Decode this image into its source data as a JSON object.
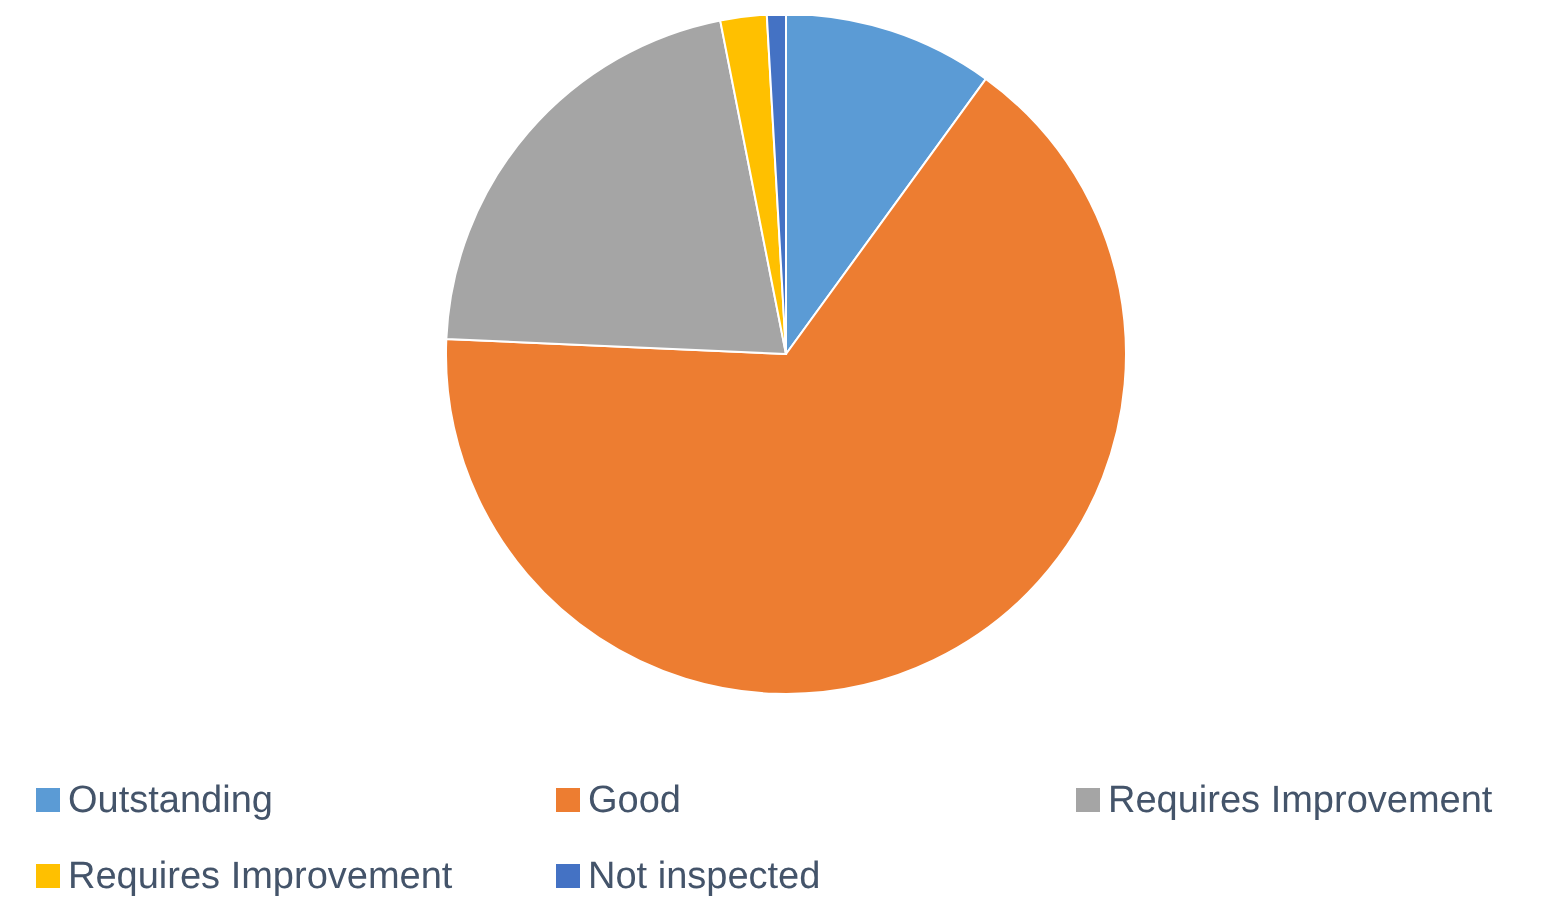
{
  "chart_data": {
    "type": "pie",
    "categories": [
      "Outstanding",
      "Good",
      "Requires Improvement",
      "Requires Improvement",
      "Not inspected"
    ],
    "values": [
      10,
      65.7,
      21.2,
      2.2,
      0.9
    ],
    "colors": [
      "#5b9bd5",
      "#ed7d31",
      "#a5a5a5",
      "#ffc000",
      "#4472c4"
    ],
    "legend": "bottom"
  }
}
